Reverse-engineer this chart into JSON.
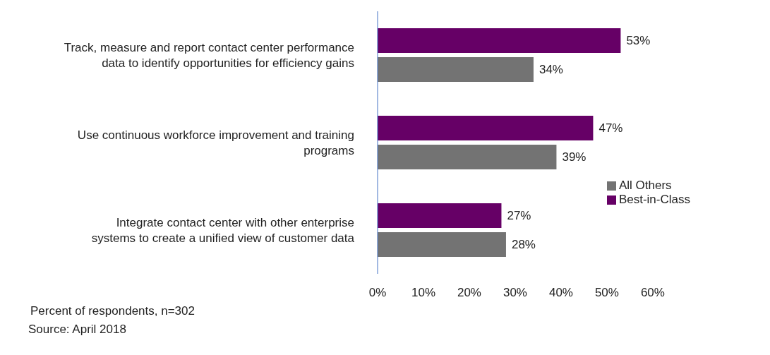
{
  "chart_data": {
    "type": "bar",
    "orientation": "horizontal",
    "categories": [
      "Track, measure and report contact center performance data to identify opportunities for efficiency gains",
      "Use continuous workforce improvement and training programs",
      "Integrate contact center with other enterprise systems to create a unified view of customer data"
    ],
    "series": [
      {
        "name": "Best-in-Class",
        "color": "#660066",
        "values": [
          53,
          47,
          27
        ],
        "value_labels": [
          "53%",
          "47%",
          "27%"
        ]
      },
      {
        "name": "All Others",
        "color": "#737373",
        "values": [
          34,
          39,
          28
        ],
        "value_labels": [
          "34%",
          "39%",
          "28%"
        ]
      }
    ],
    "xlim": [
      0,
      60
    ],
    "xticks": [
      {
        "value": 0,
        "label": "0%"
      },
      {
        "value": 10,
        "label": "10%"
      },
      {
        "value": 20,
        "label": "20%"
      },
      {
        "value": 30,
        "label": "30%"
      },
      {
        "value": 40,
        "label": "40%"
      },
      {
        "value": 50,
        "label": "50%"
      },
      {
        "value": 60,
        "label": "60%"
      }
    ],
    "grid": false,
    "legend": "right",
    "annotations": [
      "Percent of respondents, n=302",
      "Source: April 2018"
    ]
  }
}
